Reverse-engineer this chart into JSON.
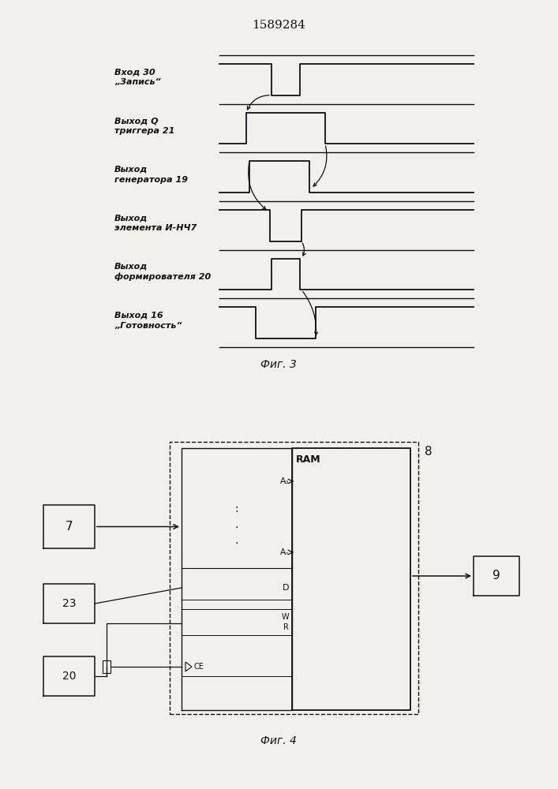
{
  "title": "1589284",
  "fig3_label": "Фиг. 3",
  "fig4_label": "Фиг. 4",
  "signal_labels": [
    "Вход 30\n„Запись“",
    "Выход Q\nтриггера 21",
    "Выход\nгенератора 19",
    "Выход\nэлемента И-НЧ7",
    "Выход\nформирователя 20",
    "Выход 16\n„Готовность“"
  ],
  "bg_color": "#f2f0eb",
  "line_color": "#111111",
  "text_color": "#111111"
}
